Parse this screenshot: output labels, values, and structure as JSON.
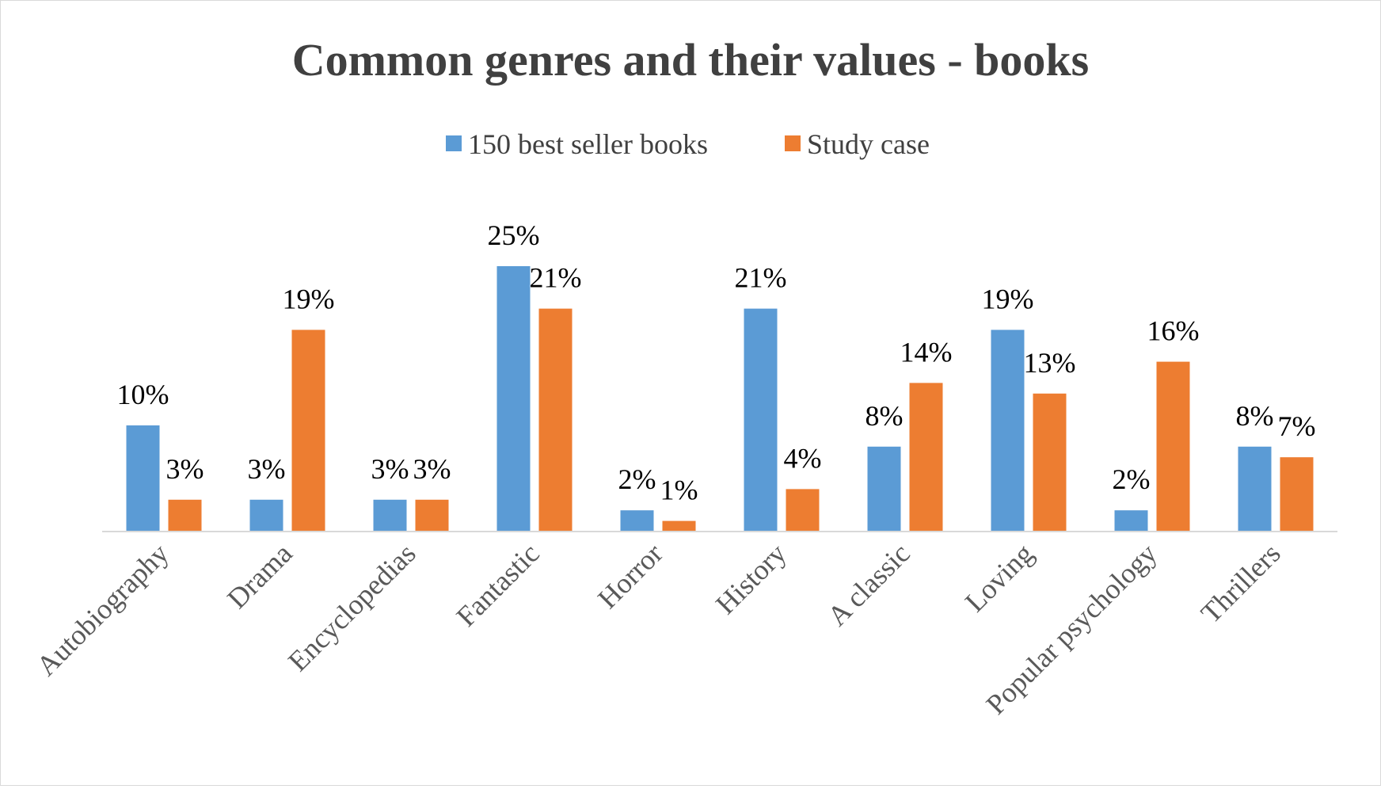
{
  "chart_data": {
    "type": "bar",
    "title": "Common genres and their values - books",
    "xlabel": "",
    "ylabel": "",
    "categories": [
      "Autobiography",
      "Drama",
      "Encyclopedias",
      "Fantastic",
      "Horror",
      "History",
      "A classic",
      "Loving",
      "Popular psychology",
      "Thrillers"
    ],
    "series": [
      {
        "name": "150 best seller books",
        "color": "#5b9bd5",
        "values": [
          10,
          3,
          3,
          25,
          2,
          21,
          8,
          19,
          2,
          8
        ],
        "labels": [
          "10%",
          "3%",
          "3%",
          "25%",
          "2%",
          "21%",
          "8%",
          "19%",
          "2%",
          "8%"
        ]
      },
      {
        "name": "Study case",
        "color": "#ed7d31",
        "values": [
          3,
          19,
          3,
          21,
          1,
          4,
          14,
          13,
          16,
          7
        ],
        "labels": [
          "3%",
          "19%",
          "3%",
          "21%",
          "1%",
          "4%",
          "14%",
          "13%",
          "16%",
          "7%"
        ]
      }
    ],
    "value_unit": "%",
    "ylim": [
      0,
      25
    ],
    "grid": false,
    "legend_position": "top"
  }
}
